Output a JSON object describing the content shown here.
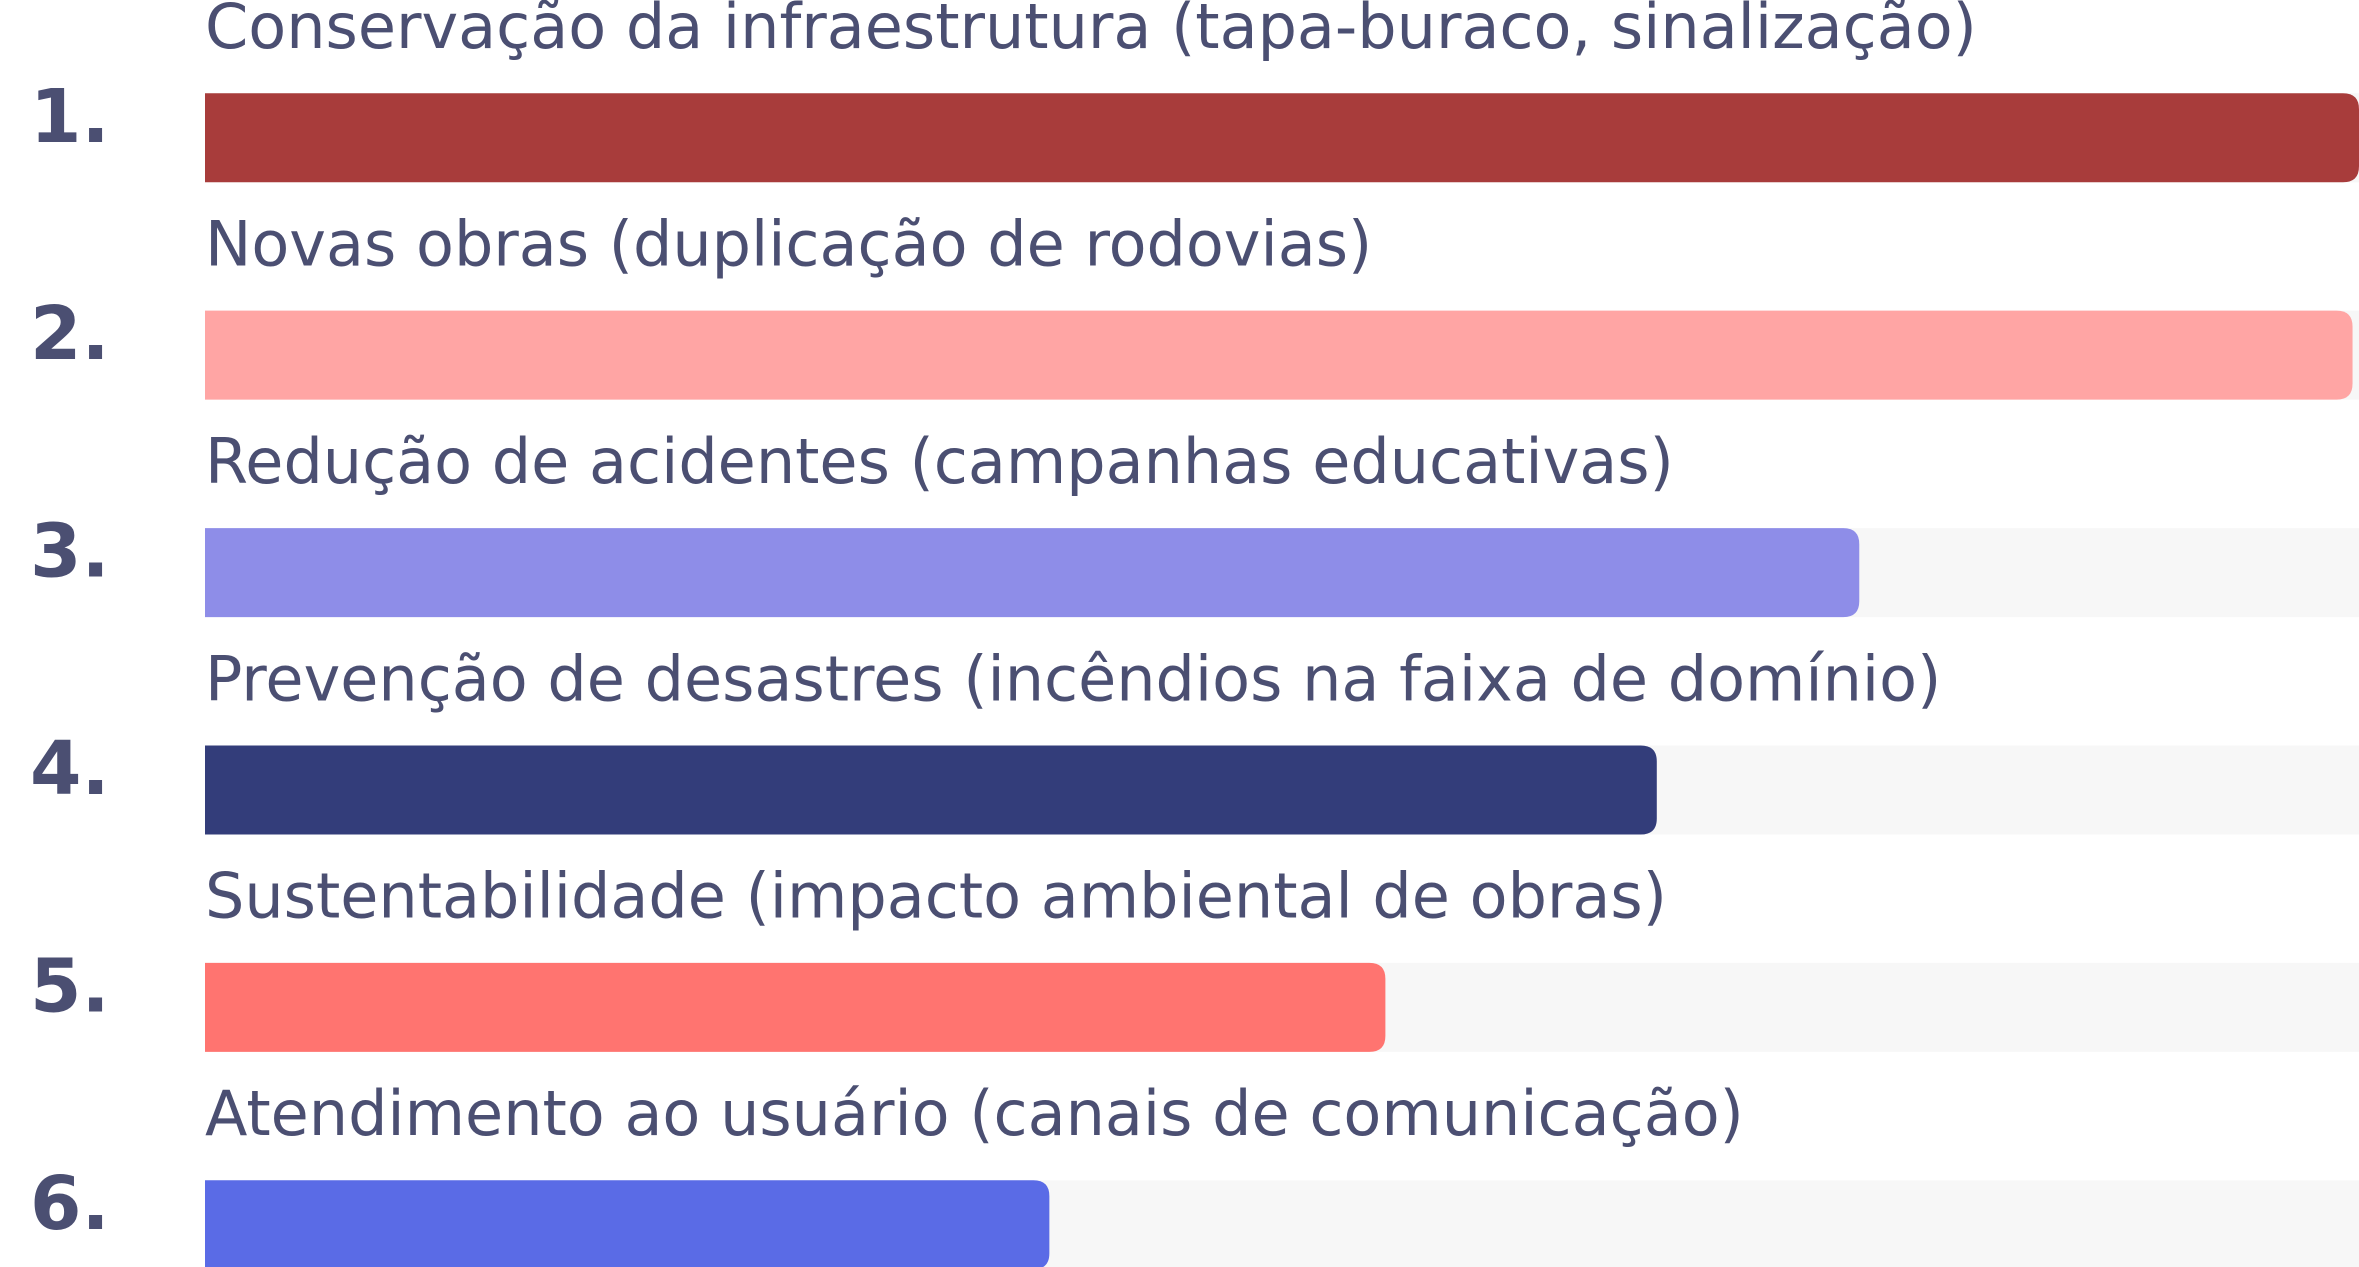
{
  "chart_data": {
    "type": "bar",
    "orientation": "horizontal",
    "ranks": [
      "1.",
      "2.",
      "3.",
      "4.",
      "5.",
      "6."
    ],
    "categories": [
      "Conservação da infraestrutura (tapa-buraco, sinalização)",
      "Novas obras (duplicação de rodovias)",
      "Redução de acidentes (campanhas educativas)",
      "Prevenção de desastres (incêndios na faixa de domínio)",
      "Sustentabilidade (impacto ambiental de obras)",
      "Atendimento ao usuário (canais de comunicação)"
    ],
    "values": [
      100,
      99.7,
      76.8,
      67.4,
      54.8,
      39.2
    ],
    "colors": [
      "#a83c3b",
      "#ffa5a4",
      "#8e8de8",
      "#333d7a",
      "#ff7470",
      "#5a6be6"
    ],
    "track_color": "#f7f7f7",
    "xlim": [
      0,
      100
    ]
  }
}
